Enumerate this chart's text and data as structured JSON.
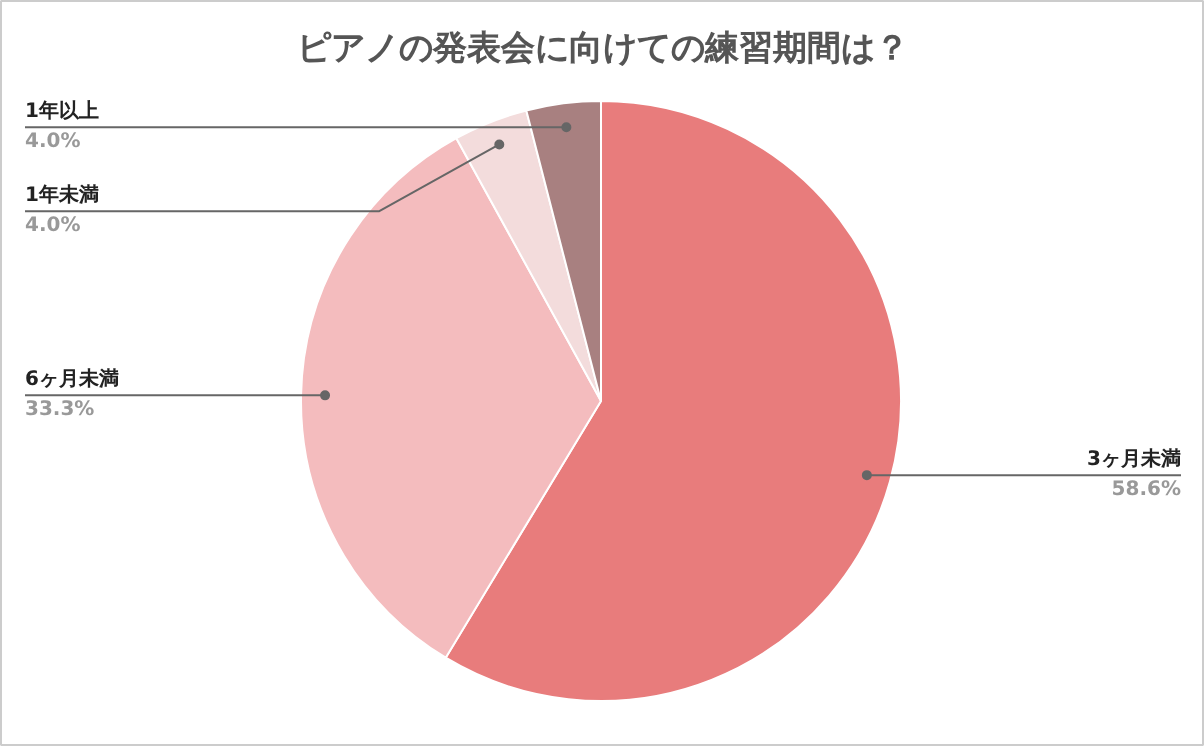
{
  "chart_data": {
    "type": "pie",
    "title": "ピアノの発表会に向けての練習期間は？",
    "categories": [
      "3ヶ月未満",
      "6ヶ月未満",
      "1年未満",
      "1年以上"
    ],
    "values": [
      58.6,
      33.3,
      4.0,
      4.0
    ],
    "value_labels": [
      "58.6%",
      "33.3%",
      "4.0%",
      "4.0%"
    ],
    "colors": [
      "#e87c7c",
      "#f4bcbe",
      "#f3dcdc",
      "#a88080"
    ]
  }
}
